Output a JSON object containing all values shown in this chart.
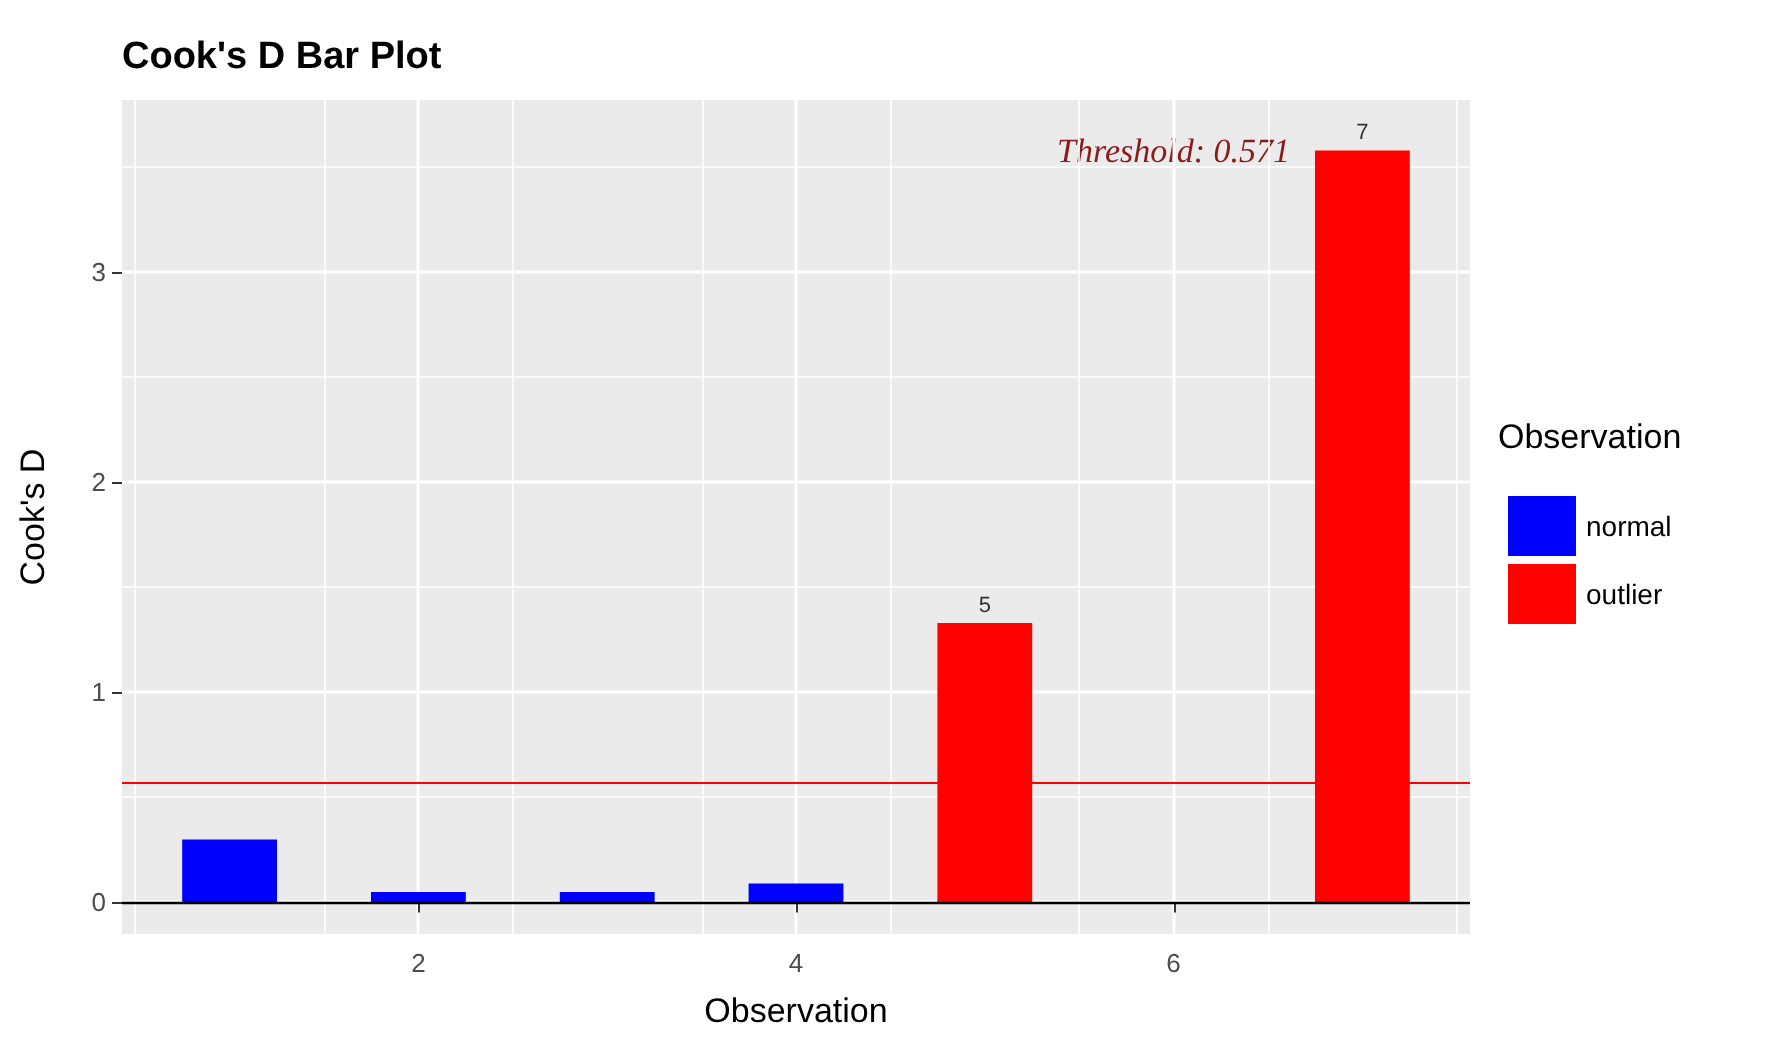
{
  "chart_data": {
    "type": "bar",
    "title": "Cook's D Bar Plot",
    "xlabel": "Observation",
    "ylabel": "Cook's D",
    "legend_title": "Observation",
    "series": [
      {
        "name": "normal",
        "color": "#0000ff",
        "x": [
          1,
          2,
          3,
          4,
          6
        ],
        "values": [
          0.3,
          0.05,
          0.05,
          0.09,
          0
        ]
      },
      {
        "name": "outlier",
        "color": "#ff0000",
        "x": [
          5,
          7
        ],
        "values": [
          1.33,
          3.58
        ]
      }
    ],
    "xlim": [
      0.43,
      7.57
    ],
    "xticks": [
      2,
      4,
      6
    ],
    "ylim": [
      -0.15,
      3.82
    ],
    "yticks": [
      0,
      1,
      2,
      3
    ],
    "ref_lines": [
      {
        "axis": "y",
        "value": 0,
        "color": "#000000"
      },
      {
        "axis": "y",
        "value": 0.571,
        "color": "#ff0000"
      }
    ],
    "annotations": [
      "Threshold: 0.571",
      {
        "text": "5",
        "x": 5,
        "y": 1.33
      },
      {
        "text": "7",
        "x": 7,
        "y": 3.58
      }
    ],
    "grid": true,
    "legend": "right"
  }
}
